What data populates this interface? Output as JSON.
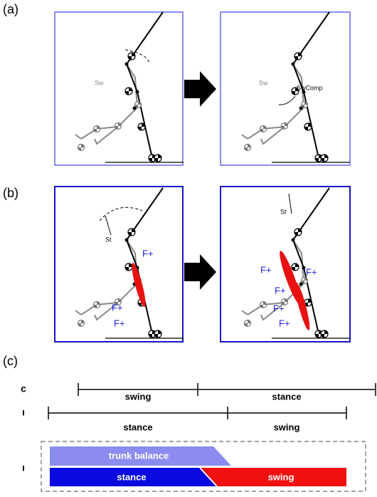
{
  "panel_labels": [
    "(a)",
    "(b)",
    "(c)"
  ],
  "panel_a": {
    "left": {
      "label": "Sw"
    },
    "right": {
      "labels": [
        "Sw",
        "SwComp"
      ]
    }
  },
  "panel_b": {
    "left": {
      "st": "St",
      "forces": [
        "F+",
        "F+",
        "F+"
      ]
    },
    "right": {
      "st": "St",
      "forces": [
        "F+",
        "F+",
        "F+",
        "F+",
        "F+"
      ]
    }
  },
  "timeline": {
    "rows": [
      {
        "label": "c",
        "phases": [
          "swing",
          "stance"
        ]
      },
      {
        "label": "ı",
        "phases": [
          "stance",
          "swing"
        ]
      },
      {
        "label": "ı",
        "bars": [
          "trunk balance",
          "stance",
          "swing"
        ]
      }
    ]
  }
}
